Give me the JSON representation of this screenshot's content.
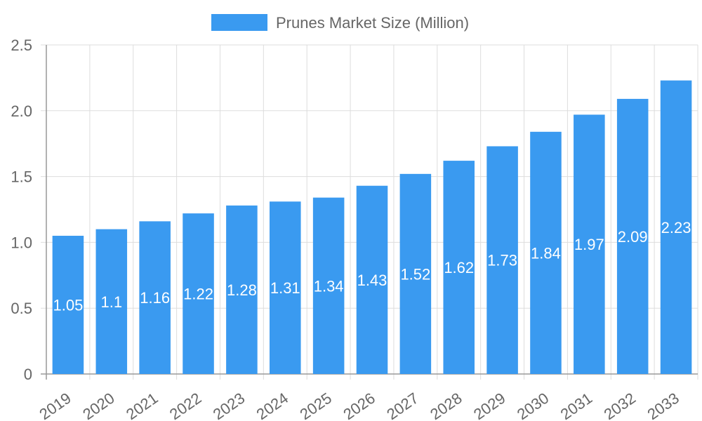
{
  "chart_data": {
    "type": "bar",
    "categories": [
      "2019",
      "2020",
      "2021",
      "2022",
      "2023",
      "2024",
      "2025",
      "2026",
      "2027",
      "2028",
      "2029",
      "2030",
      "2031",
      "2032",
      "2033"
    ],
    "series": [
      {
        "name": "Prunes Market Size (Million)",
        "values": [
          1.05,
          1.1,
          1.16,
          1.22,
          1.28,
          1.31,
          1.34,
          1.43,
          1.52,
          1.62,
          1.73,
          1.84,
          1.97,
          2.09,
          2.23
        ],
        "labels": [
          "1.05",
          "1.1",
          "1.16",
          "1.22",
          "1.28",
          "1.31",
          "1.34",
          "1.43",
          "1.52",
          "1.62",
          "1.73",
          "1.84",
          "1.97",
          "2.09",
          "2.23"
        ]
      }
    ],
    "ylim": [
      0,
      2.5
    ],
    "yticks": [
      "0",
      "0.5",
      "1.0",
      "1.5",
      "2.0",
      "2.5"
    ],
    "ytick_values": [
      0,
      0.5,
      1.0,
      1.5,
      2.0,
      2.5
    ],
    "grid": true,
    "legend": "top-center",
    "colors": {
      "bar": "#3a9af0",
      "grid": "#dddddd",
      "axis": "#999999",
      "text": "#666666"
    }
  }
}
